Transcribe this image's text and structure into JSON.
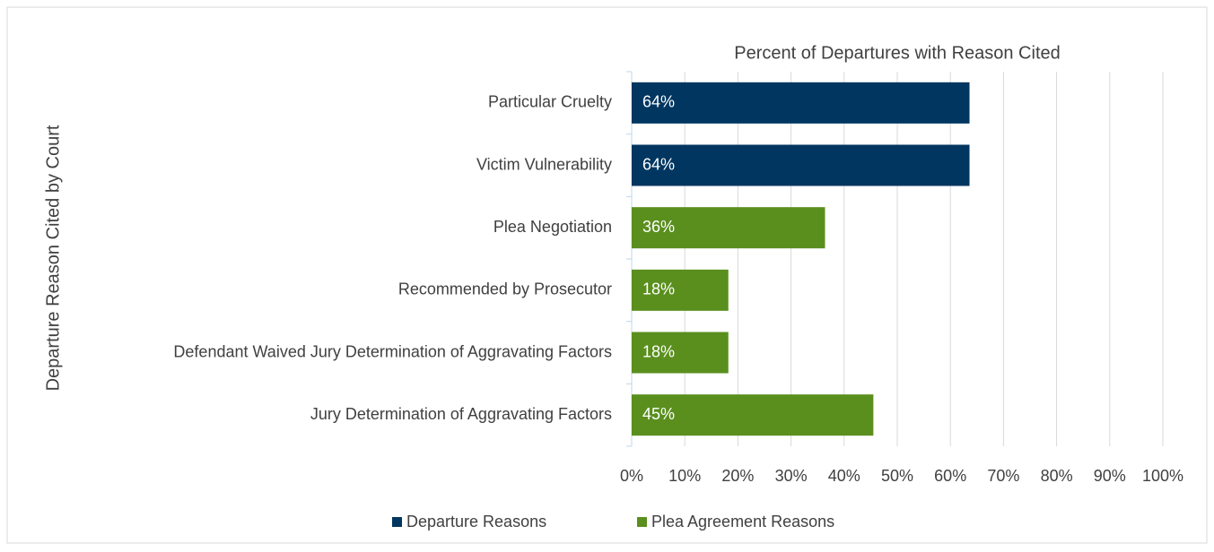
{
  "chart_data": {
    "type": "bar",
    "orientation": "horizontal",
    "title": "Percent of Departures with Reason Cited",
    "y_label": "Departure Reason Cited by Court",
    "categories": [
      "Particular Cruelty",
      "Victim Vulnerability",
      "Plea Negotiation",
      "Recommended by Prosecutor",
      "Defendant Waived Jury Determination of Aggravating Factors",
      "Jury Determination of Aggravating Factors"
    ],
    "series": [
      {
        "name": "Departure Reasons",
        "color": "#003660",
        "values": [
          63.6,
          63.6,
          null,
          null,
          null,
          null
        ],
        "value_labels": [
          "64%",
          "64%",
          null,
          null,
          null,
          null
        ]
      },
      {
        "name": "Plea Agreement Reasons",
        "color": "#5a8f1e",
        "values": [
          null,
          null,
          36.4,
          18.2,
          18.2,
          45.5
        ],
        "value_labels": [
          null,
          null,
          "36%",
          "18%",
          "18%",
          "45%"
        ]
      }
    ],
    "xlim": [
      0,
      100
    ],
    "xticks": [
      {
        "value": 0,
        "label": "0%"
      },
      {
        "value": 10,
        "label": "10%"
      },
      {
        "value": 20,
        "label": "20%"
      },
      {
        "value": 30,
        "label": "30%"
      },
      {
        "value": 40,
        "label": "40%"
      },
      {
        "value": 50,
        "label": "50%"
      },
      {
        "value": 60,
        "label": "60%"
      },
      {
        "value": 70,
        "label": "70%"
      },
      {
        "value": 80,
        "label": "80%"
      },
      {
        "value": 90,
        "label": "90%"
      },
      {
        "value": 100,
        "label": "100%"
      }
    ],
    "grid": true,
    "legend": "bottom"
  }
}
